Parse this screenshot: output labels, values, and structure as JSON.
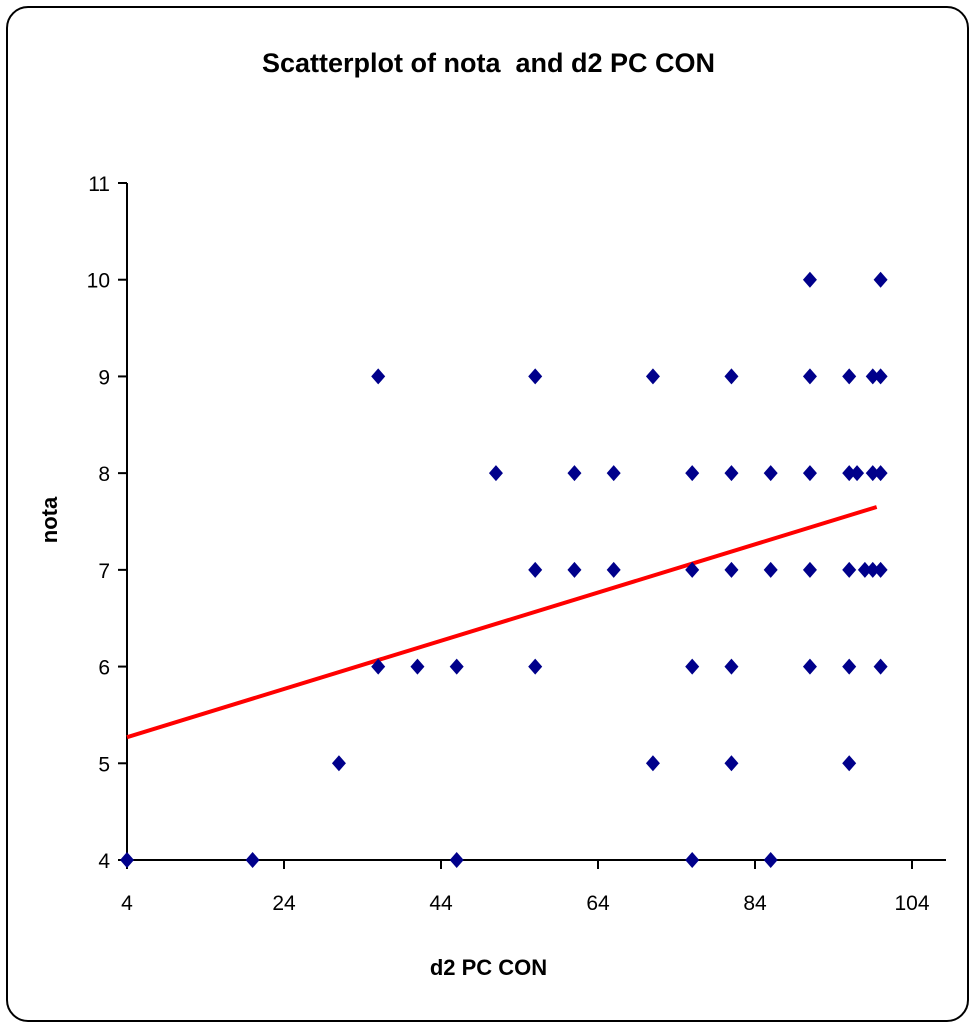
{
  "chart_data": {
    "type": "scatter",
    "title": "Scatterplot of nota  and d2 PC CON",
    "xlabel": "d2 PC CON",
    "ylabel": "nota",
    "xlim": [
      4,
      104
    ],
    "ylim": [
      4,
      11
    ],
    "xticks": [
      "4",
      "24",
      "44",
      "64",
      "84",
      "104"
    ],
    "yticks": [
      "4",
      "5",
      "6",
      "7",
      "8",
      "9",
      "10",
      "11"
    ],
    "grid": false,
    "legend": "none",
    "series": [
      {
        "color": "#00008b",
        "marker": "diamond",
        "points": [
          [
            4,
            4
          ],
          [
            20,
            4
          ],
          [
            31,
            5
          ],
          [
            36,
            9
          ],
          [
            36,
            6
          ],
          [
            41,
            6
          ],
          [
            46,
            6
          ],
          [
            46,
            4
          ],
          [
            51,
            8
          ],
          [
            56,
            9
          ],
          [
            56,
            7
          ],
          [
            56,
            6
          ],
          [
            61,
            8
          ],
          [
            61,
            7
          ],
          [
            66,
            8
          ],
          [
            66,
            7
          ],
          [
            71,
            9
          ],
          [
            71,
            5
          ],
          [
            76,
            8
          ],
          [
            76,
            7
          ],
          [
            76,
            6
          ],
          [
            76,
            4
          ],
          [
            81,
            9
          ],
          [
            81,
            8
          ],
          [
            81,
            7
          ],
          [
            81,
            6
          ],
          [
            81,
            5
          ],
          [
            86,
            8
          ],
          [
            86,
            7
          ],
          [
            86,
            4
          ],
          [
            91,
            10
          ],
          [
            91,
            9
          ],
          [
            91,
            8
          ],
          [
            91,
            7
          ],
          [
            91,
            6
          ],
          [
            96,
            9
          ],
          [
            96,
            8
          ],
          [
            96,
            7
          ],
          [
            96,
            6
          ],
          [
            96,
            5
          ],
          [
            97,
            8
          ],
          [
            98,
            7
          ],
          [
            99,
            9
          ],
          [
            99,
            8
          ],
          [
            99,
            7
          ],
          [
            100,
            10
          ],
          [
            100,
            9
          ],
          [
            100,
            8
          ],
          [
            100,
            7
          ],
          [
            100,
            6
          ]
        ]
      }
    ],
    "trendline": {
      "color": "#ff0000",
      "x": [
        4,
        99.5
      ],
      "y": [
        5.27,
        7.65
      ]
    }
  }
}
